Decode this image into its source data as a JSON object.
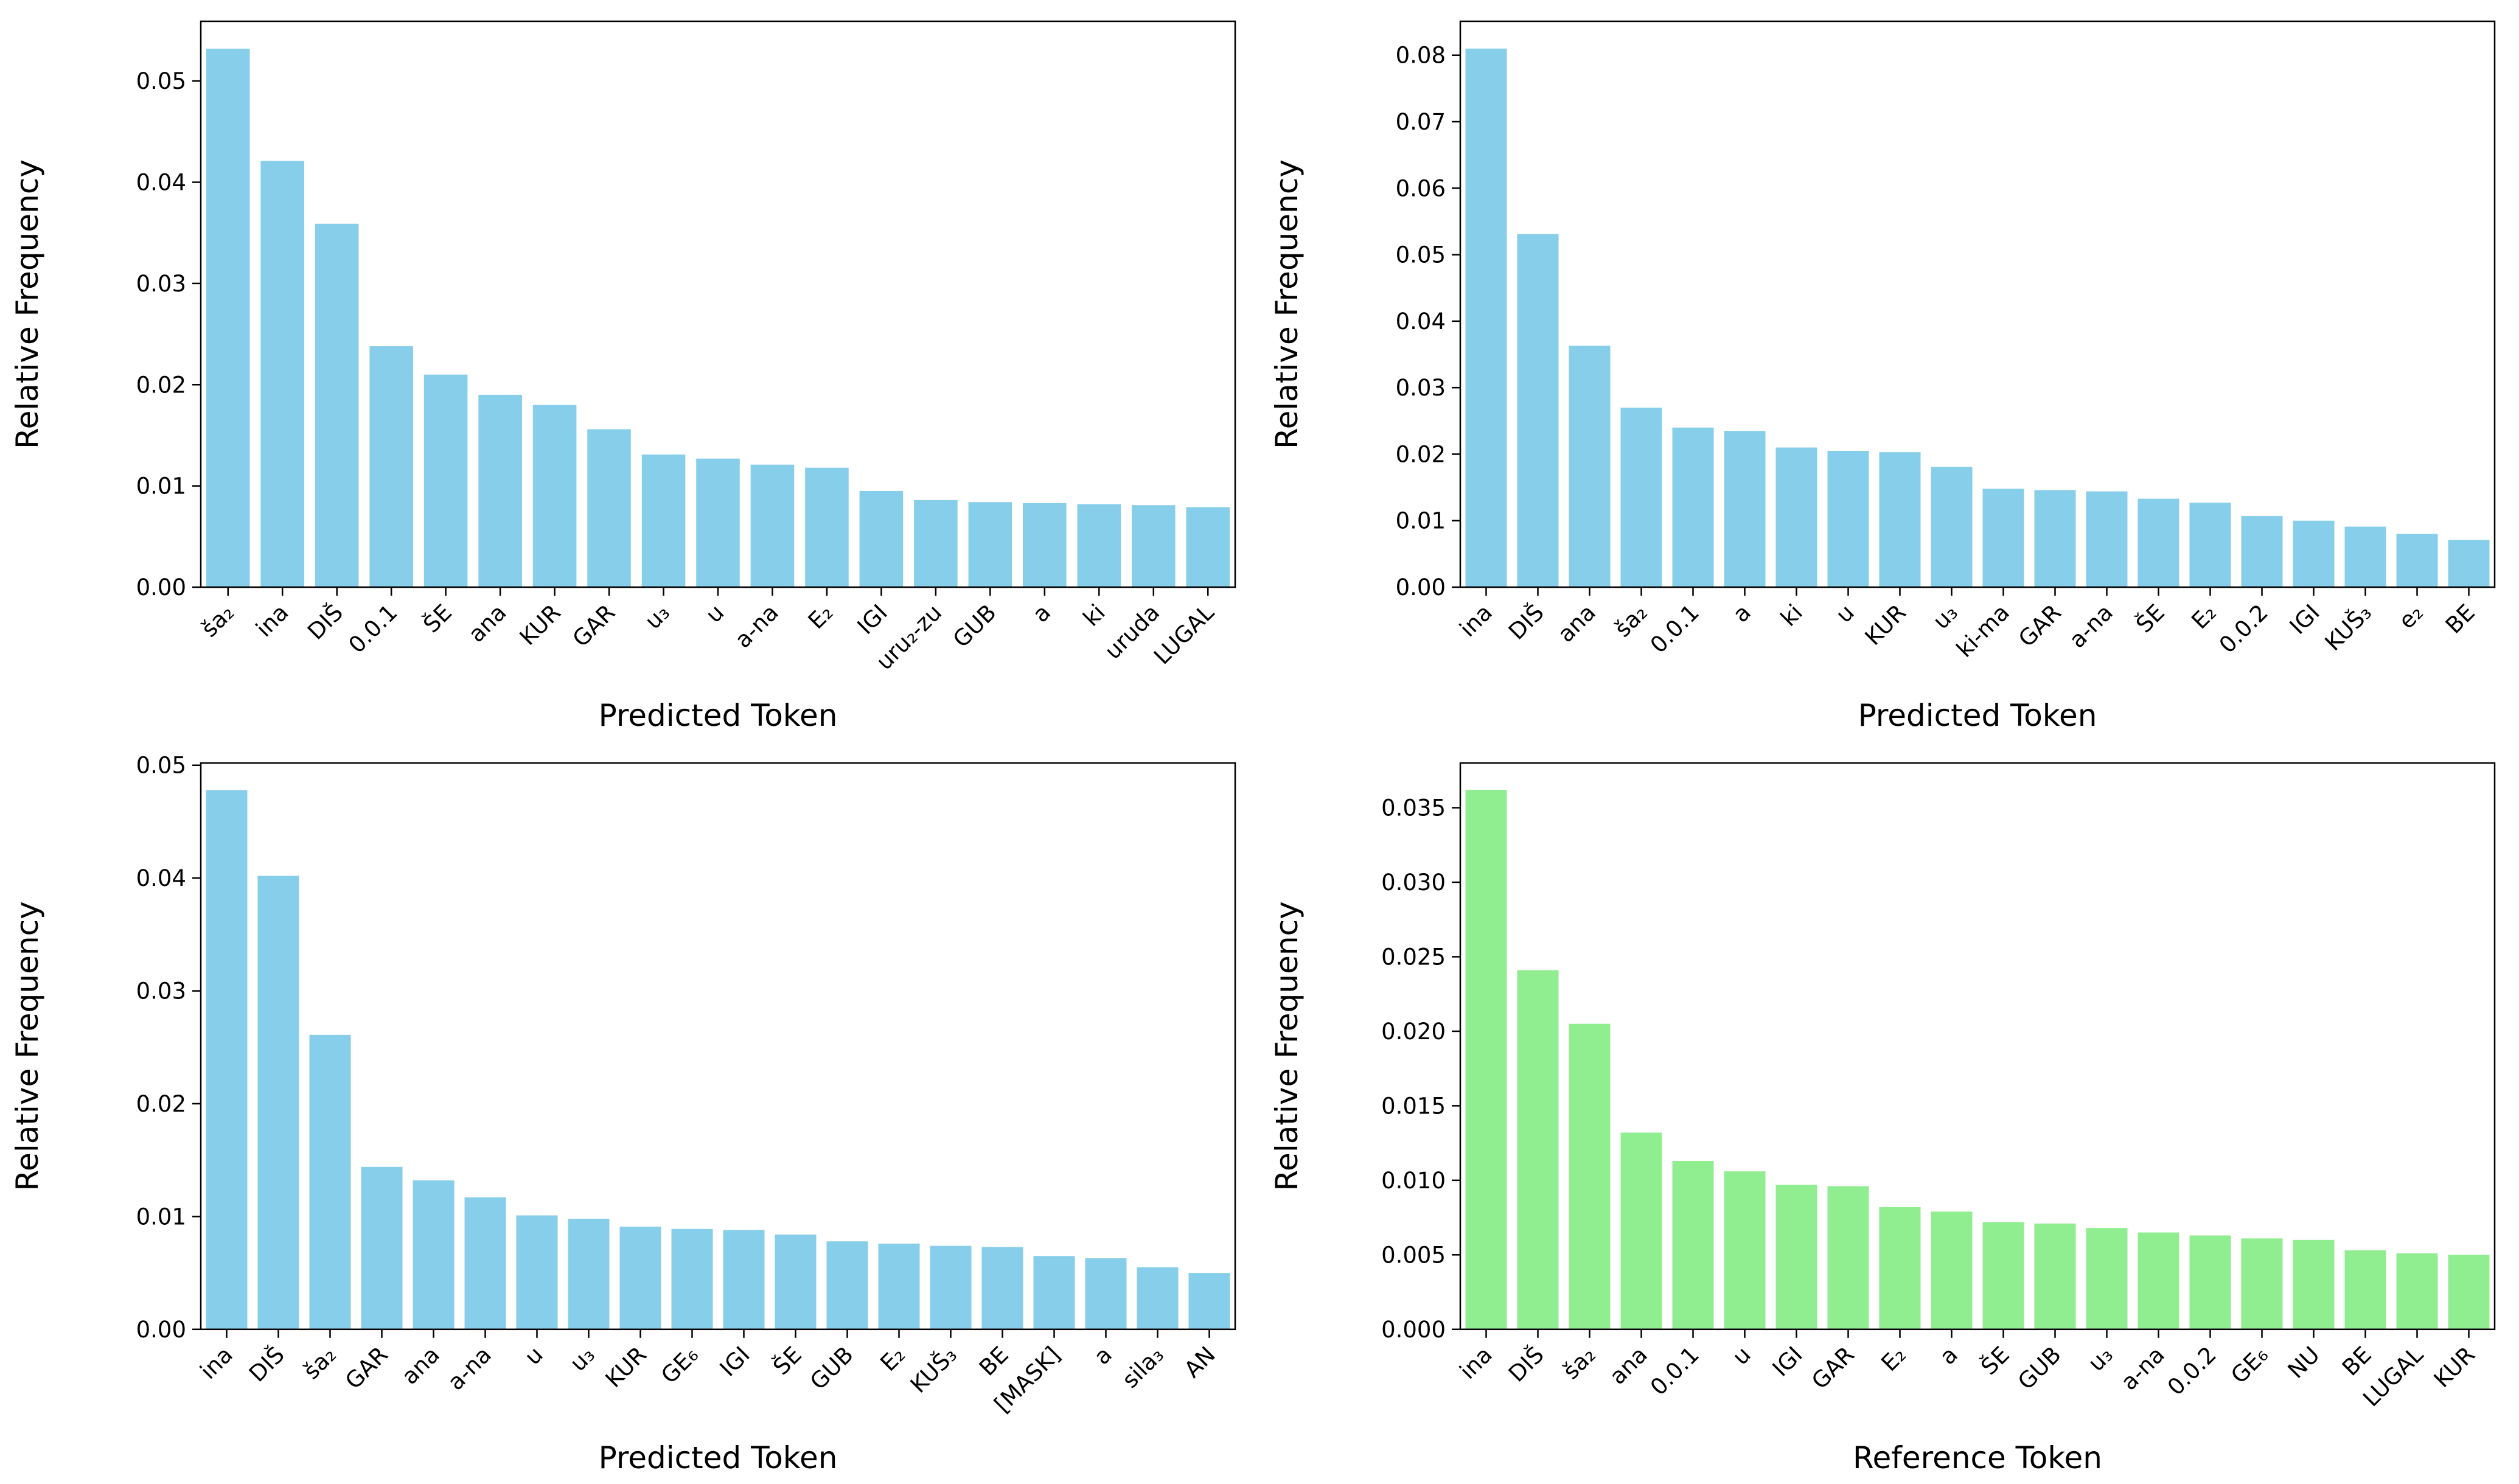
{
  "page": {
    "background": "#ffffff",
    "layout": "2x2-grid-of-bar-charts"
  },
  "chart_data": [
    {
      "type": "bar",
      "position": "top-left",
      "title": "",
      "xlabel": "Predicted Token",
      "ylabel": "Relative Frequency",
      "bar_color": "#87CEEB",
      "grid": false,
      "legend": "none",
      "ylim": [
        0,
        0.0559
      ],
      "yticks": [
        0,
        0.01,
        0.02,
        0.03,
        0.04,
        0.05
      ],
      "ytick_decimals": 2,
      "categories": [
        "ša₂",
        "ina",
        "DIŠ",
        "0.0.1",
        "ŠE",
        "ana",
        "KUR",
        "GAR",
        "u₃",
        "u",
        "a-na",
        "E₂",
        "IGI",
        "uru₂-zu",
        "GUB",
        "a",
        "ki",
        "uruda",
        "LUGAL"
      ],
      "values": [
        0.0532,
        0.0421,
        0.0359,
        0.0238,
        0.021,
        0.019,
        0.018,
        0.0156,
        0.0131,
        0.0127,
        0.0121,
        0.0118,
        0.0095,
        0.0086,
        0.0084,
        0.0083,
        0.0082,
        0.0081,
        0.0079
      ]
    },
    {
      "type": "bar",
      "position": "top-right",
      "title": "",
      "xlabel": "Predicted Token",
      "ylabel": "Relative Frequency",
      "bar_color": "#87CEEB",
      "grid": false,
      "legend": "none",
      "ylim": [
        0,
        0.0851
      ],
      "yticks": [
        0,
        0.01,
        0.02,
        0.03,
        0.04,
        0.05,
        0.06,
        0.07,
        0.08
      ],
      "ytick_decimals": 2,
      "categories": [
        "ina",
        "DIŠ",
        "ana",
        "ša₂",
        "0.0.1",
        "a",
        "ki",
        "u",
        "KUR",
        "u₃",
        "ki-ma",
        "GAR",
        "a-na",
        "ŠE",
        "E₂",
        "0.0.2",
        "IGI",
        "KUŠ₃",
        "e₂",
        "BE"
      ],
      "values": [
        0.081,
        0.0531,
        0.0363,
        0.027,
        0.024,
        0.0235,
        0.021,
        0.0205,
        0.0203,
        0.0181,
        0.0148,
        0.0146,
        0.0144,
        0.0133,
        0.0127,
        0.0107,
        0.01,
        0.0091,
        0.008,
        0.0071
      ]
    },
    {
      "type": "bar",
      "position": "bottom-left",
      "title": "",
      "xlabel": "Predicted Token",
      "ylabel": "Relative Frequency",
      "bar_color": "#87CEEB",
      "grid": false,
      "legend": "none",
      "ylim": [
        0,
        0.0502
      ],
      "yticks": [
        0,
        0.01,
        0.02,
        0.03,
        0.04,
        0.05
      ],
      "ytick_decimals": 2,
      "categories": [
        "ina",
        "DIŠ",
        "ša₂",
        "GAR",
        "ana",
        "a-na",
        "u",
        "u₃",
        "KUR",
        "GE₆",
        "IGI",
        "ŠE",
        "GUB",
        "E₂",
        "KUŠ₃",
        "BE",
        "[MASK]",
        "a",
        "sila₃",
        "AN"
      ],
      "values": [
        0.0478,
        0.0402,
        0.0261,
        0.0144,
        0.0132,
        0.0117,
        0.0101,
        0.0098,
        0.0091,
        0.0089,
        0.0088,
        0.0084,
        0.0078,
        0.0076,
        0.0074,
        0.0073,
        0.0065,
        0.0063,
        0.0055,
        0.005
      ]
    },
    {
      "type": "bar",
      "position": "bottom-right",
      "title": "",
      "xlabel": "Reference Token",
      "ylabel": "Relative Frequency",
      "bar_color": "#90EE90",
      "grid": false,
      "legend": "none",
      "ylim": [
        0,
        0.038
      ],
      "yticks": [
        0,
        0.005,
        0.01,
        0.015,
        0.02,
        0.025,
        0.03,
        0.035
      ],
      "ytick_decimals": 3,
      "categories": [
        "ina",
        "DIŠ",
        "ša₂",
        "ana",
        "0.0.1",
        "u",
        "IGI",
        "GAR",
        "E₂",
        "a",
        "ŠE",
        "GUB",
        "u₃",
        "a-na",
        "0.0.2",
        "GE₆",
        "NU",
        "BE",
        "LUGAL",
        "KUR"
      ],
      "values": [
        0.0362,
        0.0241,
        0.0205,
        0.0132,
        0.0113,
        0.0106,
        0.0097,
        0.0096,
        0.0082,
        0.0079,
        0.0072,
        0.0071,
        0.0068,
        0.0065,
        0.0063,
        0.0061,
        0.006,
        0.0053,
        0.0051,
        0.005
      ]
    }
  ]
}
